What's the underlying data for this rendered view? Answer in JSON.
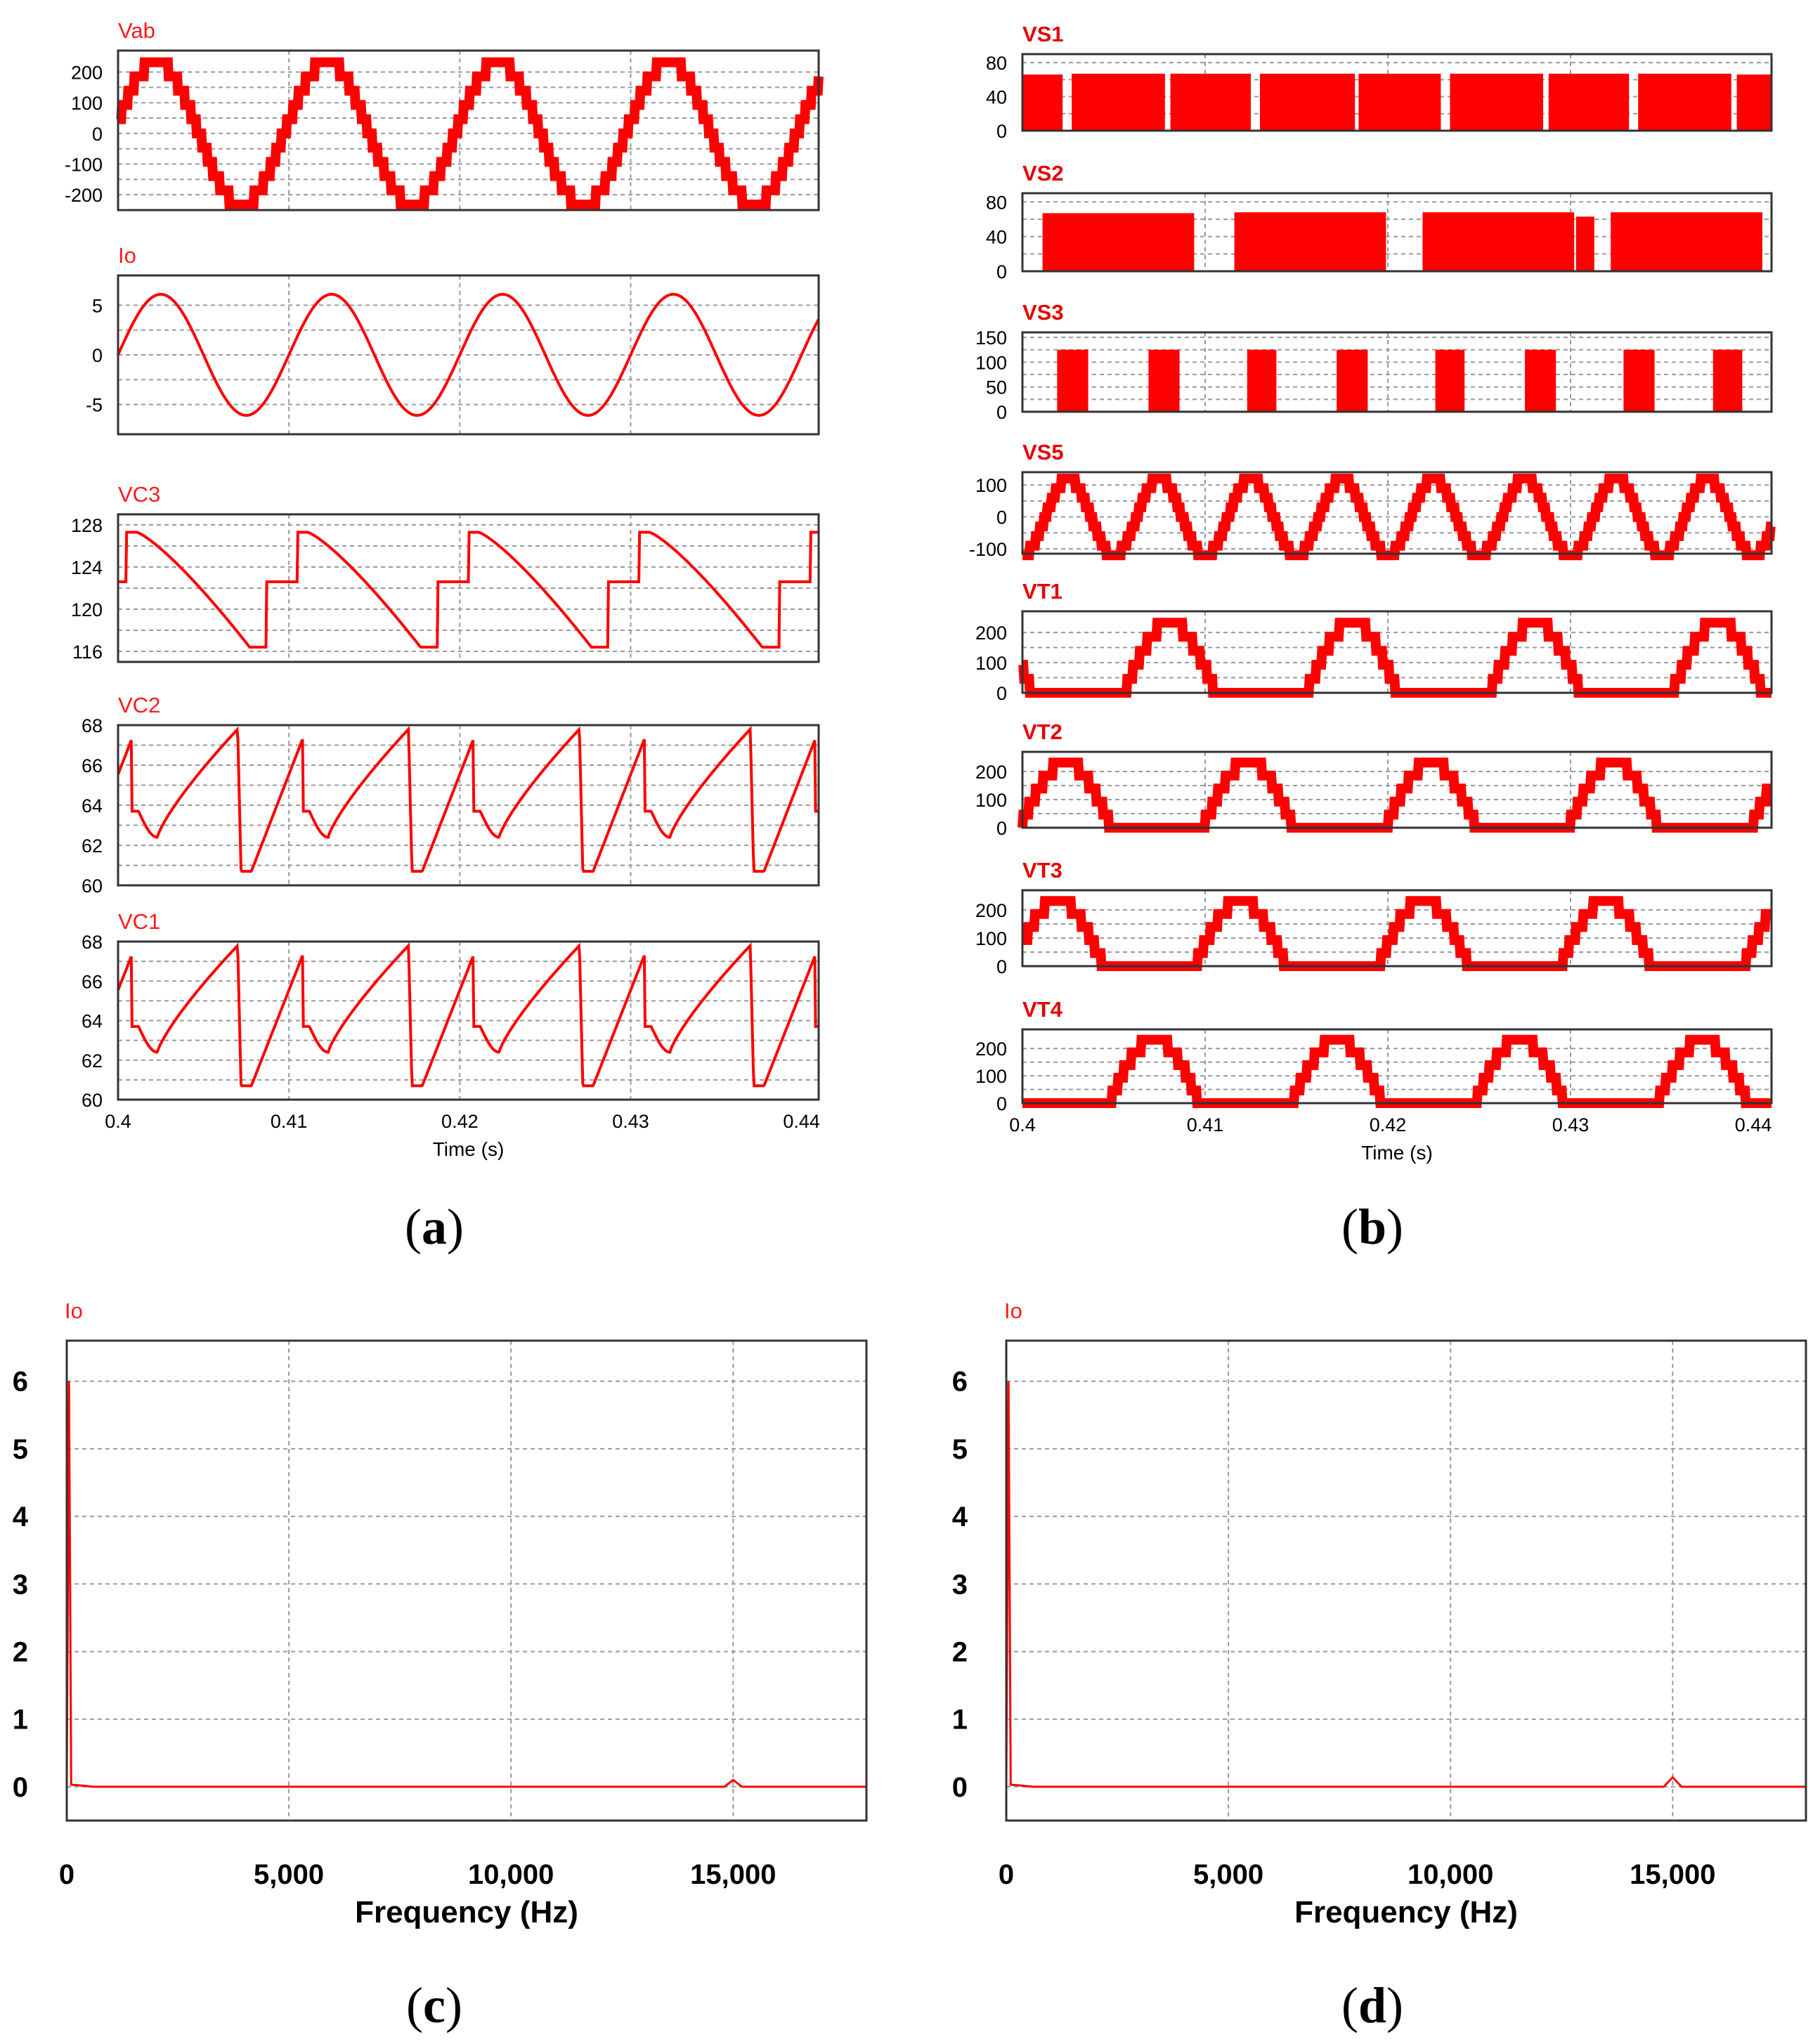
{
  "captions": {
    "a": "a",
    "b": "b",
    "c": "c",
    "d": "d"
  },
  "colors": {
    "trace": "#ff0000",
    "grid": "#9a9a9a",
    "frame": "#333333"
  },
  "chart_data": [
    {
      "id": "Vab",
      "panel": "a",
      "type": "line",
      "title": "Vab",
      "style": "staircase",
      "amplitude": 232,
      "levels": 5,
      "freq_hz": 100,
      "phase_deg": 10,
      "ylim": [
        -250,
        270
      ],
      "yticks": [
        200,
        100,
        0,
        -100,
        -200
      ],
      "yticklabels": [
        "200",
        "100",
        "0",
        "-100",
        "-200"
      ],
      "xlim": [
        0.4,
        0.441
      ]
    },
    {
      "id": "Io",
      "panel": "a",
      "type": "line",
      "title": "Io",
      "style": "sine",
      "amplitude": 6.1,
      "freq_hz": 100,
      "phase_deg": 0,
      "ylim": [
        -8,
        8
      ],
      "yticks": [
        5,
        0,
        -5
      ],
      "yticklabels": [
        "5",
        "0",
        "-5"
      ],
      "xlim": [
        0.4,
        0.441
      ]
    },
    {
      "id": "VC3",
      "panel": "a",
      "type": "line",
      "title": "VC3",
      "style": "vc3",
      "ylim": [
        115,
        129
      ],
      "yticks": [
        128,
        124,
        120,
        116
      ],
      "yticklabels": [
        "128",
        "124",
        "120",
        "116"
      ],
      "xlim": [
        0.4,
        0.441
      ]
    },
    {
      "id": "VC2",
      "panel": "a",
      "type": "line",
      "title": "VC2",
      "style": "vc",
      "ylim": [
        60,
        68
      ],
      "yticks": [
        68,
        66,
        64,
        62,
        60
      ],
      "yticklabels": [
        "68",
        "66",
        "64",
        "62",
        "60"
      ],
      "xlim": [
        0.4,
        0.441
      ]
    },
    {
      "id": "VC1",
      "panel": "a",
      "type": "line",
      "title": "VC1",
      "style": "vc",
      "ylim": [
        60,
        68
      ],
      "yticks": [
        68,
        66,
        64,
        62,
        60
      ],
      "yticklabels": [
        "68",
        "66",
        "64",
        "62",
        "60"
      ],
      "xlim": [
        0.4,
        0.441
      ],
      "xticks": [
        0.4,
        0.41,
        0.42,
        0.43,
        0.44
      ],
      "xticklabels": [
        "0.4",
        "0.41",
        "0.42",
        "0.43",
        "0.44"
      ],
      "xlabel": "Time (s)"
    },
    {
      "id": "VS1",
      "panel": "b",
      "type": "area",
      "title": "VS1",
      "style": "blocks",
      "blocks": [
        [
          0.4,
          0.4022,
          66
        ],
        [
          0.4027,
          0.4078,
          67
        ],
        [
          0.4081,
          0.4125,
          67
        ],
        [
          0.413,
          0.4182,
          67
        ],
        [
          0.4184,
          0.4229,
          67
        ],
        [
          0.4234,
          0.4285,
          67
        ],
        [
          0.4288,
          0.4332,
          67
        ],
        [
          0.4337,
          0.4388,
          67
        ],
        [
          0.4391,
          0.441,
          66
        ]
      ],
      "ylim": [
        0,
        90
      ],
      "yticks": [
        80,
        40,
        0
      ],
      "yticklabels": [
        "80",
        "40",
        "0"
      ],
      "xlim": [
        0.4,
        0.441
      ]
    },
    {
      "id": "VS2",
      "panel": "b",
      "type": "area",
      "title": "VS2",
      "style": "blocks",
      "blocks": [
        [
          0.4011,
          0.4094,
          67
        ],
        [
          0.4116,
          0.4199,
          68
        ],
        [
          0.4219,
          0.4302,
          68
        ],
        [
          0.4303,
          0.4313,
          63
        ],
        [
          0.4322,
          0.4405,
          68
        ]
      ],
      "ylim": [
        0,
        90
      ],
      "yticks": [
        80,
        40,
        0
      ],
      "yticklabels": [
        "80",
        "40",
        "0"
      ],
      "xlim": [
        0.4,
        0.441
      ]
    },
    {
      "id": "VS3",
      "panel": "b",
      "type": "area",
      "title": "VS3",
      "style": "blocks",
      "blocks": [
        [
          0.4019,
          0.4036,
          125
        ],
        [
          0.4069,
          0.4086,
          125
        ],
        [
          0.4123,
          0.4139,
          125
        ],
        [
          0.4172,
          0.4189,
          125
        ],
        [
          0.4226,
          0.4242,
          125
        ],
        [
          0.4275,
          0.4292,
          125
        ],
        [
          0.4329,
          0.4346,
          125
        ],
        [
          0.4378,
          0.4394,
          125
        ]
      ],
      "ylim": [
        0,
        160
      ],
      "yticks": [
        150,
        100,
        50,
        0
      ],
      "yticklabels": [
        "150",
        "100",
        "50",
        "0"
      ],
      "xlim": [
        0.4,
        0.441
      ]
    },
    {
      "id": "VS5",
      "panel": "b",
      "type": "line",
      "title": "VS5",
      "style": "staircase",
      "amplitude": 120,
      "levels": 4,
      "freq_hz": 200,
      "phase_deg": -90,
      "ylim": [
        -115,
        140
      ],
      "yticks": [
        100,
        0,
        -100
      ],
      "yticklabels": [
        "100",
        "0",
        "-100"
      ],
      "xlim": [
        0.4,
        0.441
      ]
    },
    {
      "id": "VT1",
      "panel": "b",
      "type": "line",
      "title": "VT1",
      "style": "rectified",
      "amplitude": 232,
      "freq_hz": 100,
      "phase_deg": 160,
      "levels": 5,
      "ylim": [
        0,
        270
      ],
      "yticks": [
        200,
        100,
        0
      ],
      "yticklabels": [
        "200",
        "100",
        "0"
      ],
      "xlim": [
        0.4,
        0.441
      ]
    },
    {
      "id": "VT2",
      "panel": "b",
      "type": "line",
      "title": "VT2",
      "style": "rectified",
      "amplitude": 232,
      "freq_hz": 100,
      "phase_deg": 5,
      "levels": 5,
      "ylim": [
        0,
        270
      ],
      "yticks": [
        200,
        100,
        0
      ],
      "yticklabels": [
        "200",
        "100",
        "0"
      ],
      "xlim": [
        0.4,
        0.441
      ]
    },
    {
      "id": "VT3",
      "panel": "b",
      "type": "line",
      "title": "VT3",
      "style": "rectified",
      "amplitude": 232,
      "freq_hz": 100,
      "phase_deg": 20,
      "levels": 5,
      "ylim": [
        0,
        270
      ],
      "yticks": [
        200,
        100,
        0
      ],
      "yticklabels": [
        "200",
        "100",
        "0"
      ],
      "xlim": [
        0.4,
        0.441
      ]
    },
    {
      "id": "VT4",
      "panel": "b",
      "type": "line",
      "title": "VT4",
      "style": "rectified",
      "amplitude": 232,
      "freq_hz": 100,
      "phase_deg": 190,
      "levels": 5,
      "ylim": [
        0,
        270
      ],
      "yticks": [
        200,
        100,
        0
      ],
      "yticklabels": [
        "200",
        "100",
        "0"
      ],
      "xlim": [
        0.4,
        0.441
      ],
      "xticks": [
        0.4,
        0.41,
        0.42,
        0.43,
        0.44
      ],
      "xticklabels": [
        "0.4",
        "0.41",
        "0.42",
        "0.43",
        "0.44"
      ],
      "xlabel": "Time (s)"
    },
    {
      "id": "spec_c",
      "panel": "c",
      "type": "line",
      "title": "Io",
      "style": "spectrum",
      "points": [
        [
          0,
          0
        ],
        [
          50,
          6.0
        ],
        [
          100,
          0.03
        ],
        [
          300,
          0.02
        ],
        [
          600,
          0
        ],
        [
          14800,
          0
        ],
        [
          15000,
          0.1
        ],
        [
          15200,
          0
        ],
        [
          18000,
          0
        ]
      ],
      "xlim": [
        0,
        18000
      ],
      "ylim": [
        -0.5,
        6.6
      ],
      "yticks": [
        6,
        5,
        4,
        3,
        2,
        1,
        0
      ],
      "yticklabels": [
        "6",
        "5",
        "4",
        "3",
        "2",
        "1",
        "0"
      ],
      "xticks": [
        0,
        5000,
        10000,
        15000
      ],
      "xticklabels": [
        "0",
        "5,000",
        "10,000",
        "15,000"
      ],
      "xlabel": "Frequency (Hz)"
    },
    {
      "id": "spec_d",
      "panel": "d",
      "type": "line",
      "title": "Io",
      "style": "spectrum",
      "points": [
        [
          0,
          0
        ],
        [
          50,
          6.0
        ],
        [
          100,
          0.03
        ],
        [
          300,
          0.02
        ],
        [
          600,
          0
        ],
        [
          14800,
          0
        ],
        [
          15000,
          0.14
        ],
        [
          15200,
          0
        ],
        [
          18000,
          0
        ]
      ],
      "xlim": [
        0,
        18000
      ],
      "ylim": [
        -0.5,
        6.6
      ],
      "yticks": [
        6,
        5,
        4,
        3,
        2,
        1,
        0
      ],
      "yticklabels": [
        "6",
        "5",
        "4",
        "3",
        "2",
        "1",
        "0"
      ],
      "xticks": [
        0,
        5000,
        10000,
        15000
      ],
      "xticklabels": [
        "0",
        "5,000",
        "10,000",
        "15,000"
      ],
      "xlabel": "Frequency (Hz)"
    }
  ]
}
